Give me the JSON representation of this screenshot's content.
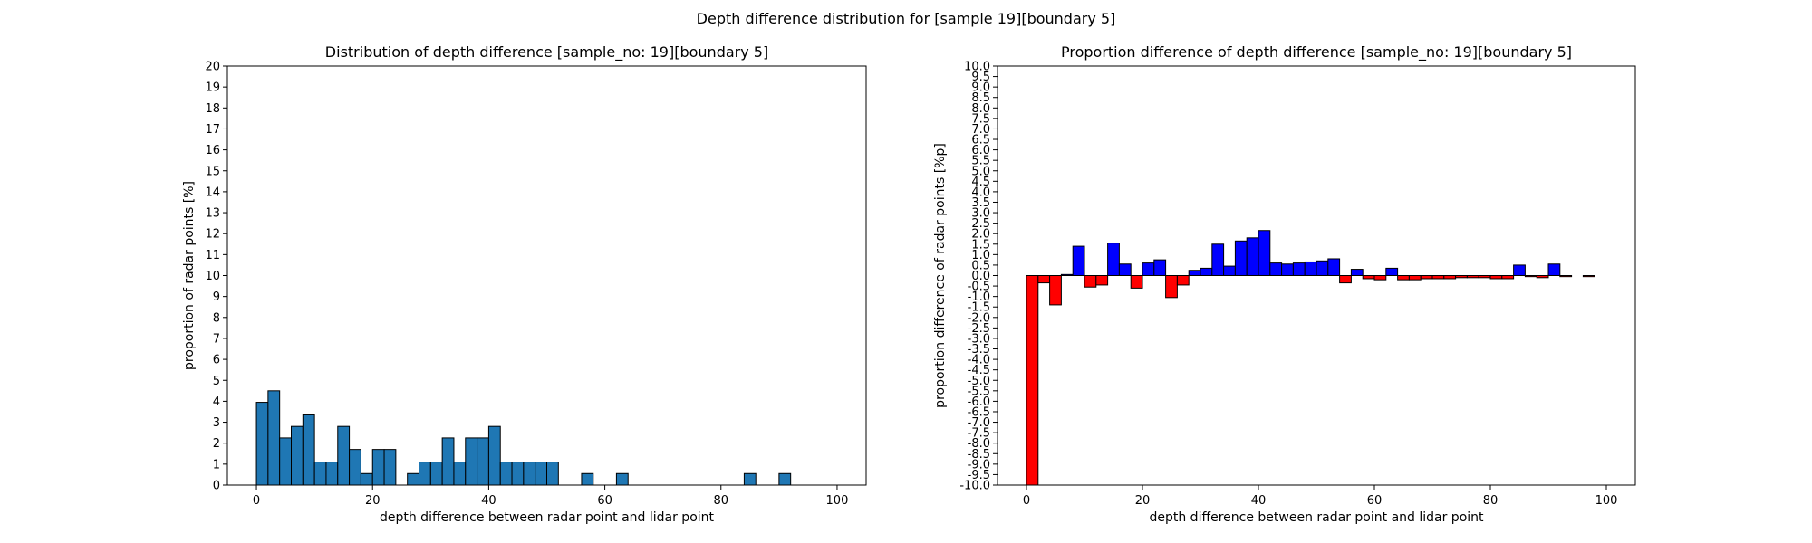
{
  "figure": {
    "suptitle": "Depth difference distribution for [sample 19][boundary 5]"
  },
  "chart_data": [
    {
      "type": "bar",
      "title": "Distribution of depth difference [sample_no: 19][boundary 5]",
      "xlabel": "depth difference between radar point and lidar point",
      "ylabel": "proportion of radar points [%]",
      "xlim": [
        -5,
        105
      ],
      "ylim": [
        0,
        20
      ],
      "x_ticks": [
        0,
        20,
        40,
        60,
        80,
        100
      ],
      "y_ticks": [
        0,
        1,
        2,
        3,
        4,
        5,
        6,
        7,
        8,
        9,
        10,
        11,
        12,
        13,
        14,
        15,
        16,
        17,
        18,
        19,
        20
      ],
      "bin_width": 2,
      "bin_starts": [
        0,
        2,
        4,
        6,
        8,
        10,
        12,
        14,
        16,
        18,
        20,
        22,
        24,
        26,
        28,
        30,
        32,
        34,
        36,
        38,
        40,
        42,
        44,
        46,
        48,
        50,
        52,
        54,
        56,
        58,
        60,
        62,
        64,
        66,
        68,
        70,
        72,
        74,
        76,
        78,
        80,
        82,
        84,
        86,
        88,
        90,
        92,
        94,
        96,
        98
      ],
      "values": [
        3.95,
        4.5,
        2.25,
        2.8,
        3.35,
        1.1,
        1.1,
        2.8,
        1.7,
        0.55,
        1.7,
        1.7,
        0,
        0.55,
        1.1,
        1.1,
        2.25,
        1.1,
        2.25,
        2.25,
        2.8,
        1.1,
        1.1,
        1.1,
        1.1,
        1.1,
        0,
        0,
        0.55,
        0,
        0,
        0.55,
        0,
        0,
        0,
        0,
        0,
        0,
        0,
        0,
        0,
        0,
        0.55,
        0,
        0,
        0.55,
        0,
        0,
        0,
        0
      ],
      "bar_color": "#1f77b4",
      "edge_color": "#000000"
    },
    {
      "type": "bar",
      "title": "Proportion difference of depth difference [sample_no: 19][boundary 5]",
      "xlabel": "depth difference between radar point and lidar point",
      "ylabel": "proportion difference of radar points [%p]",
      "xlim": [
        -5,
        105
      ],
      "ylim": [
        -10,
        10
      ],
      "x_ticks": [
        0,
        20,
        40,
        60,
        80,
        100
      ],
      "y_ticks": [
        -10.0,
        -9.5,
        -9.0,
        -8.5,
        -8.0,
        -7.5,
        -7.0,
        -6.5,
        -6.0,
        -5.5,
        -5.0,
        -4.5,
        -4.0,
        -3.5,
        -3.0,
        -2.5,
        -2.0,
        -1.5,
        -1.0,
        -0.5,
        0.0,
        0.5,
        1.0,
        1.5,
        2.0,
        2.5,
        3.0,
        3.5,
        4.0,
        4.5,
        5.0,
        5.5,
        6.0,
        6.5,
        7.0,
        7.5,
        8.0,
        8.5,
        9.0,
        9.5,
        10.0
      ],
      "bin_width": 2,
      "bin_starts": [
        0,
        2,
        4,
        6,
        8,
        10,
        12,
        14,
        16,
        18,
        20,
        22,
        24,
        26,
        28,
        30,
        32,
        34,
        36,
        38,
        40,
        42,
        44,
        46,
        48,
        50,
        52,
        54,
        56,
        58,
        60,
        62,
        64,
        66,
        68,
        70,
        72,
        74,
        76,
        78,
        80,
        82,
        84,
        86,
        88,
        90,
        92,
        94,
        96,
        98
      ],
      "values": [
        -10.0,
        -0.35,
        -1.4,
        0.05,
        1.4,
        -0.55,
        -0.45,
        1.55,
        0.55,
        -0.6,
        0.6,
        0.75,
        -1.05,
        -0.45,
        0.25,
        0.35,
        1.5,
        0.45,
        1.65,
        1.8,
        2.15,
        0.6,
        0.55,
        0.6,
        0.65,
        0.7,
        0.8,
        -0.35,
        0.3,
        -0.15,
        -0.2,
        0.35,
        -0.2,
        -0.2,
        -0.15,
        -0.15,
        -0.15,
        -0.1,
        -0.1,
        -0.1,
        -0.15,
        -0.15,
        0.5,
        -0.05,
        -0.1,
        0.55,
        -0.05,
        0,
        -0.05,
        0
      ],
      "positive_color": "#0000ff",
      "negative_color": "#ff0000",
      "edge_color": "#000000"
    }
  ]
}
